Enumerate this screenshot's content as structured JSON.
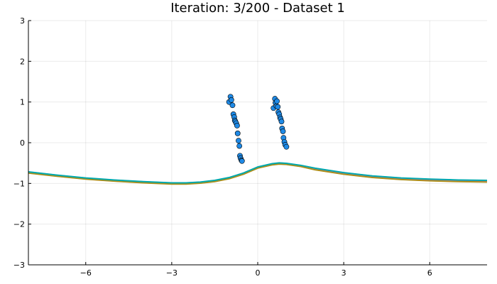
{
  "chart_data": {
    "type": "scatter",
    "title": "Iteration: 3/200 - Dataset 1",
    "xlabel": "",
    "ylabel": "",
    "xlim": [
      -8,
      8
    ],
    "ylim": [
      -3,
      3
    ],
    "xticks": [
      -6,
      -3,
      0,
      3,
      6
    ],
    "yticks": [
      -3,
      -2,
      -1,
      0,
      1,
      2,
      3
    ],
    "xtick_labels": [
      "−6",
      "−3",
      "0",
      "3",
      "6"
    ],
    "ytick_labels": [
      "−3",
      "−2",
      "−1",
      "0",
      "1",
      "2",
      "3"
    ],
    "grid": true,
    "legend": "none",
    "points": {
      "color": "#1f8ae6",
      "x": [
        -1.0,
        -0.95,
        -0.92,
        -0.88,
        -0.85,
        -0.82,
        -0.8,
        -0.78,
        -0.75,
        -0.72,
        -0.7,
        -0.67,
        -0.64,
        -0.62,
        -0.6,
        -0.57,
        -0.55,
        0.55,
        0.6,
        0.62,
        0.65,
        0.67,
        0.7,
        0.72,
        0.75,
        0.78,
        0.8,
        0.83,
        0.85,
        0.88,
        0.9,
        0.93,
        0.96,
        1.0
      ],
      "y": [
        1.0,
        1.13,
        1.05,
        0.92,
        0.7,
        0.63,
        0.55,
        0.52,
        0.48,
        0.42,
        0.23,
        0.05,
        -0.08,
        -0.32,
        -0.38,
        -0.43,
        -0.45,
        0.85,
        1.08,
        0.98,
        0.9,
        1.02,
        0.88,
        0.75,
        0.7,
        0.62,
        0.58,
        0.52,
        0.35,
        0.28,
        0.12,
        0.02,
        -0.05,
        -0.1
      ]
    },
    "series": [
      {
        "color": "#009af9",
        "x": [
          -8,
          -7,
          -6,
          -5,
          -4,
          -3,
          -2.5,
          -2,
          -1.5,
          -1,
          -0.5,
          0,
          0.5,
          0.75,
          1,
          1.5,
          2,
          3,
          4,
          5,
          6,
          7,
          8
        ],
        "y": [
          -0.72,
          -0.8,
          -0.87,
          -0.92,
          -0.96,
          -0.99,
          -0.99,
          -0.97,
          -0.93,
          -0.86,
          -0.75,
          -0.6,
          -0.52,
          -0.5,
          -0.51,
          -0.56,
          -0.63,
          -0.74,
          -0.82,
          -0.87,
          -0.9,
          -0.92,
          -0.93
        ]
      },
      {
        "color": "#e26f46",
        "x": [
          -8,
          -7,
          -6,
          -5,
          -4,
          -3,
          -2.5,
          -2,
          -1.5,
          -1,
          -0.5,
          0,
          0.5,
          0.75,
          1,
          1.5,
          2,
          3,
          4,
          5,
          6,
          7,
          8
        ],
        "y": [
          -0.74,
          -0.82,
          -0.89,
          -0.94,
          -0.98,
          -1.01,
          -1.01,
          -0.99,
          -0.95,
          -0.88,
          -0.77,
          -0.62,
          -0.54,
          -0.52,
          -0.53,
          -0.58,
          -0.66,
          -0.77,
          -0.85,
          -0.9,
          -0.93,
          -0.95,
          -0.96
        ]
      },
      {
        "color": "#3da44d",
        "x": [
          -8,
          -7,
          -6,
          -5,
          -4,
          -3,
          -2.5,
          -2,
          -1.5,
          -1,
          -0.5,
          0,
          0.5,
          0.75,
          1,
          1.5,
          2,
          3,
          4,
          5,
          6,
          7,
          8
        ],
        "y": [
          -0.73,
          -0.81,
          -0.88,
          -0.93,
          -0.97,
          -1.0,
          -1.0,
          -0.98,
          -0.94,
          -0.87,
          -0.76,
          -0.61,
          -0.53,
          -0.51,
          -0.52,
          -0.57,
          -0.645,
          -0.755,
          -0.835,
          -0.885,
          -0.915,
          -0.935,
          -0.945
        ]
      },
      {
        "color": "#c271d2",
        "x": [
          -8,
          -7,
          -6,
          -5,
          -4,
          -3,
          -2.5,
          -2,
          -1.5,
          -1,
          -0.5,
          0,
          0.5,
          0.75,
          1,
          1.5,
          2,
          3,
          4,
          5,
          6,
          7,
          8
        ],
        "y": [
          -0.725,
          -0.805,
          -0.875,
          -0.925,
          -0.965,
          -0.995,
          -0.995,
          -0.975,
          -0.935,
          -0.865,
          -0.755,
          -0.605,
          -0.525,
          -0.505,
          -0.515,
          -0.565,
          -0.64,
          -0.75,
          -0.83,
          -0.88,
          -0.91,
          -0.93,
          -0.94
        ]
      },
      {
        "color": "#ac8e18",
        "x": [
          -8,
          -7,
          -6,
          -5,
          -4,
          -3,
          -2.5,
          -2,
          -1.5,
          -1,
          -0.5,
          0,
          0.5,
          0.75,
          1,
          1.5,
          2,
          3,
          4,
          5,
          6,
          7,
          8
        ],
        "y": [
          -0.745,
          -0.825,
          -0.895,
          -0.945,
          -0.985,
          -1.015,
          -1.015,
          -0.995,
          -0.955,
          -0.885,
          -0.775,
          -0.625,
          -0.545,
          -0.525,
          -0.535,
          -0.585,
          -0.665,
          -0.775,
          -0.855,
          -0.905,
          -0.935,
          -0.955,
          -0.965
        ]
      },
      {
        "color": "#00a9ad",
        "x": [
          -8,
          -7,
          -6,
          -5,
          -4,
          -3,
          -2.5,
          -2,
          -1.5,
          -1,
          -0.5,
          0,
          0.5,
          0.75,
          1,
          1.5,
          2,
          3,
          4,
          5,
          6,
          7,
          8
        ],
        "y": [
          -0.715,
          -0.795,
          -0.865,
          -0.915,
          -0.955,
          -0.985,
          -0.985,
          -0.965,
          -0.925,
          -0.855,
          -0.745,
          -0.595,
          -0.515,
          -0.495,
          -0.505,
          -0.555,
          -0.625,
          -0.735,
          -0.815,
          -0.865,
          -0.895,
          -0.915,
          -0.925
        ]
      }
    ]
  }
}
